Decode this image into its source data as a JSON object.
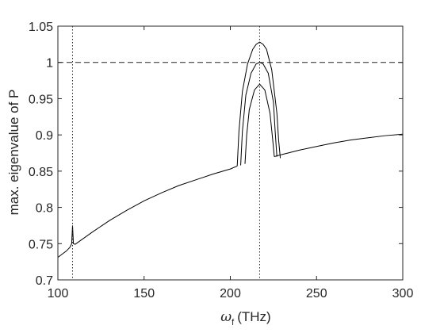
{
  "chart_data": {
    "type": "line",
    "title": "",
    "xlabel_symbol": "ω",
    "xlabel_subscript": "f",
    "xlabel_unit": "(THz)",
    "ylabel": "max. eigenvalue of P",
    "xlim": [
      100,
      300
    ],
    "ylim": [
      0.7,
      1.05
    ],
    "xticks": [
      "100",
      "150",
      "200",
      "250",
      "300"
    ],
    "yticks": [
      "0.7",
      "0.75",
      "0.8",
      "0.85",
      "0.9",
      "0.95",
      "1",
      "1.05"
    ],
    "grid": false,
    "legend": "none",
    "line_color": "#000000",
    "reference_lines": {
      "horizontal_dashed_y": 1.0,
      "vertical_dotted_x": [
        108.5,
        217
      ]
    },
    "series": [
      {
        "x": [
          100,
          105,
          107,
          108,
          108.5,
          109,
          110,
          120,
          130,
          140,
          150,
          160,
          170,
          180,
          190,
          200,
          204
        ],
        "y": [
          0.731,
          0.74,
          0.745,
          0.75,
          0.775,
          0.75,
          0.749,
          0.766,
          0.782,
          0.796,
          0.809,
          0.82,
          0.83,
          0.838,
          0.846,
          0.853,
          0.857
        ]
      },
      {
        "x": [
          204,
          205,
          207,
          210,
          213,
          215,
          217,
          219,
          221,
          224,
          227,
          228,
          229
        ],
        "y": [
          0.857,
          0.905,
          0.96,
          0.998,
          1.018,
          1.025,
          1.028,
          1.025,
          1.018,
          0.99,
          0.93,
          0.893,
          0.868
        ]
      },
      {
        "x": [
          206,
          207,
          209,
          212,
          215,
          217,
          219,
          222,
          225,
          226,
          227
        ],
        "y": [
          0.858,
          0.905,
          0.955,
          0.985,
          0.998,
          1.0,
          0.998,
          0.985,
          0.945,
          0.905,
          0.87
        ]
      },
      {
        "x": [
          208.5,
          209.5,
          211,
          214,
          217,
          220,
          223,
          224.5,
          225.5
        ],
        "y": [
          0.86,
          0.9,
          0.935,
          0.962,
          0.97,
          0.962,
          0.93,
          0.895,
          0.87
        ]
      },
      {
        "x": [
          225.5,
          227,
          230,
          240,
          250,
          260,
          270,
          280,
          290,
          300
        ],
        "y": [
          0.87,
          0.871,
          0.873,
          0.879,
          0.884,
          0.889,
          0.893,
          0.896,
          0.899,
          0.901
        ]
      }
    ]
  }
}
